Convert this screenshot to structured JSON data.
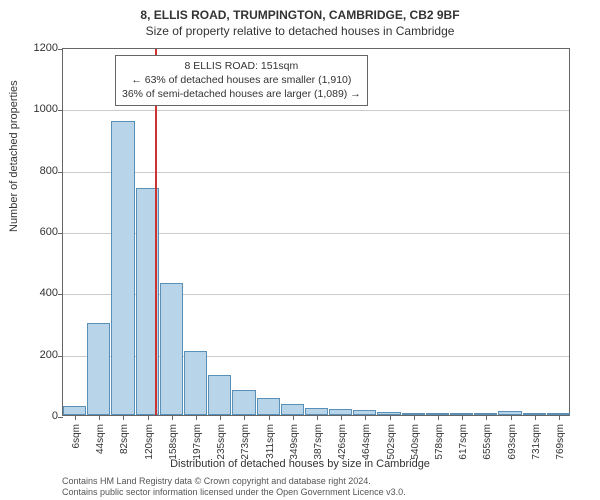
{
  "title_line1": "8, ELLIS ROAD, TRUMPINGTON, CAMBRIDGE, CB2 9BF",
  "title_line2": "Size of property relative to detached houses in Cambridge",
  "ylabel": "Number of detached properties",
  "xlabel": "Distribution of detached houses by size in Cambridge",
  "chart": {
    "type": "histogram",
    "background_color": "#ffffff",
    "grid_color": "#cccccc",
    "bar_fill": "#b8d4e8",
    "bar_stroke": "#5a8fb8",
    "axis_color": "#666666",
    "marker_color": "#cc3333",
    "ylim": [
      0,
      1200
    ],
    "ytick_step": 200,
    "yticks": [
      0,
      200,
      400,
      600,
      800,
      1000,
      1200
    ],
    "x_labels": [
      "6sqm",
      "44sqm",
      "82sqm",
      "120sqm",
      "158sqm",
      "197sqm",
      "235sqm",
      "273sqm",
      "311sqm",
      "349sqm",
      "387sqm",
      "426sqm",
      "464sqm",
      "502sqm",
      "540sqm",
      "578sqm",
      "617sqm",
      "655sqm",
      "693sqm",
      "731sqm",
      "769sqm"
    ],
    "values": [
      30,
      300,
      960,
      740,
      430,
      210,
      130,
      80,
      55,
      35,
      22,
      20,
      15,
      10,
      5,
      3,
      3,
      0,
      12,
      0,
      5
    ],
    "marker_x_index": 3.82,
    "title_fontsize": 12,
    "label_fontsize": 11,
    "tick_fontsize": 10
  },
  "annotation": {
    "line1": "8 ELLIS ROAD: 151sqm",
    "line2": "← 63% of detached houses are smaller (1,910)",
    "line3": "36% of semi-detached houses are larger (1,089) →"
  },
  "footer": {
    "line1": "Contains HM Land Registry data © Crown copyright and database right 2024.",
    "line2": "Contains public sector information licensed under the Open Government Licence v3.0."
  }
}
